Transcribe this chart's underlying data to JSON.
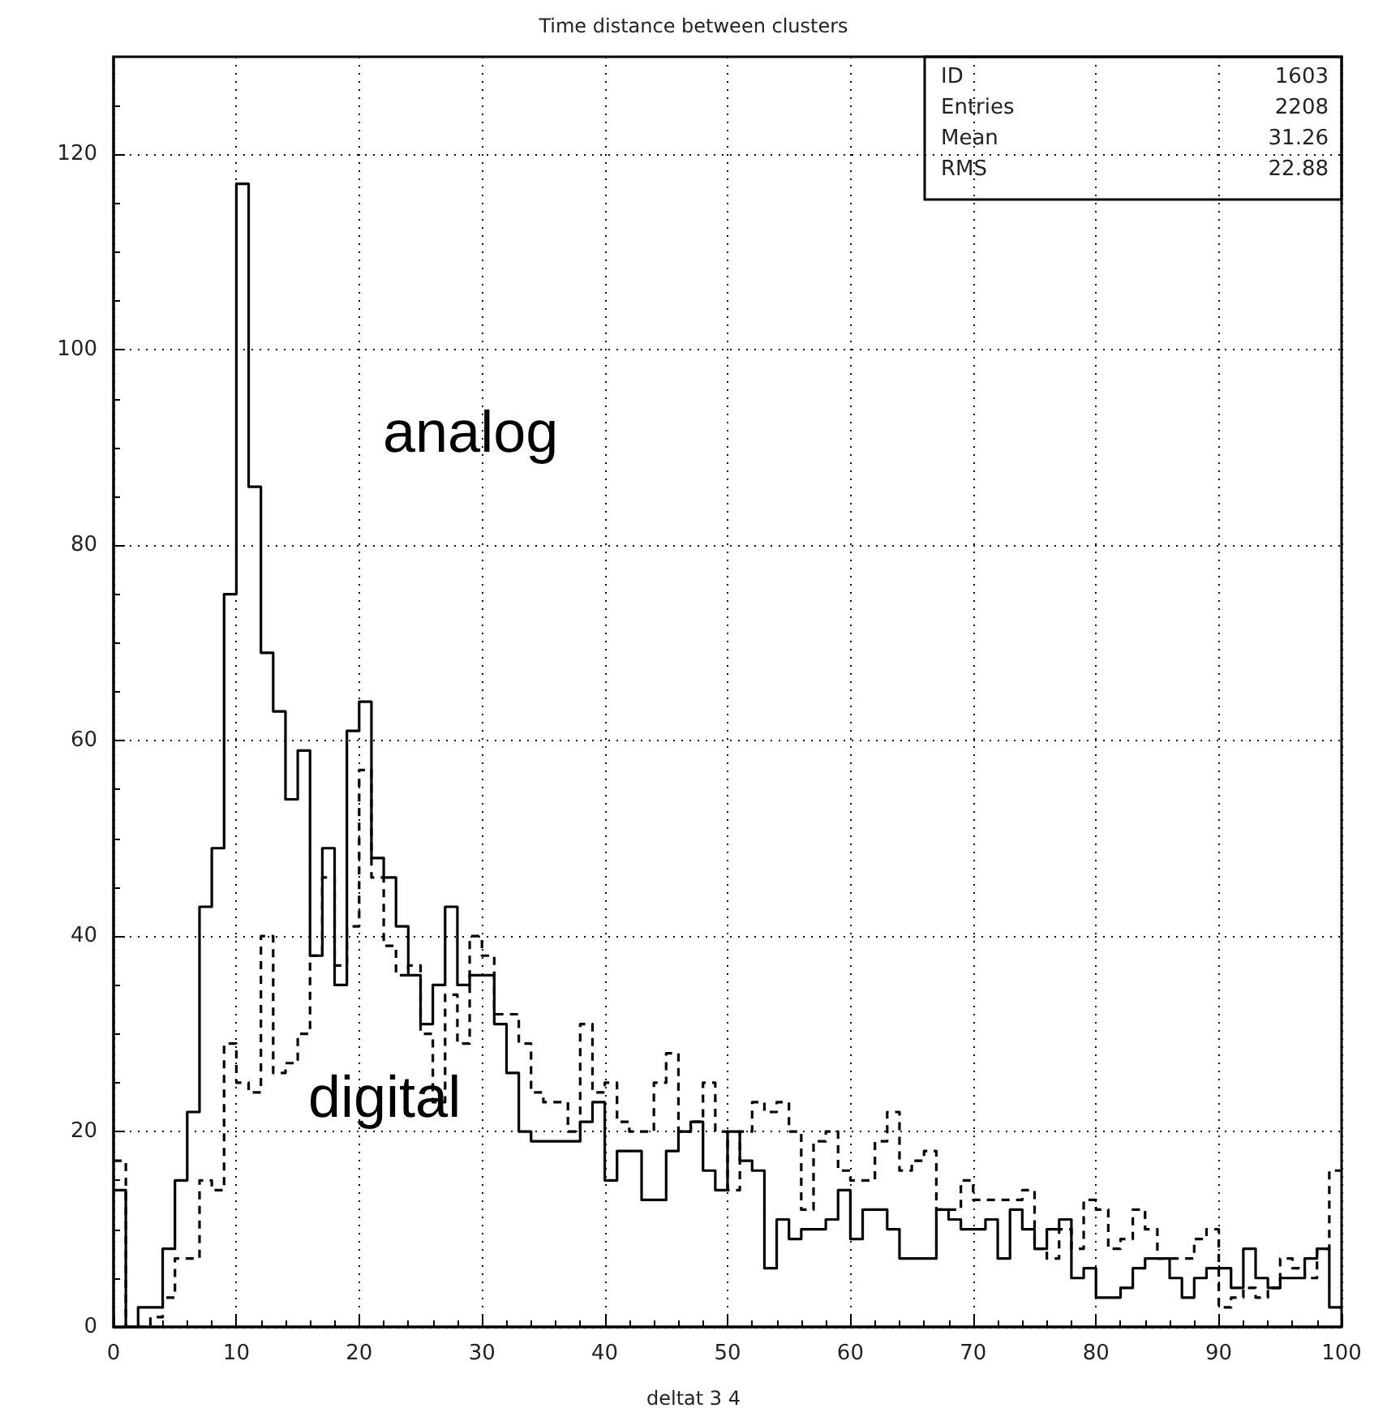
{
  "chart_data": {
    "type": "histogram",
    "title": "Time distance between clusters",
    "xlabel": "deltat 3 4",
    "bins": [
      0,
      1,
      2,
      3,
      4,
      5,
      6,
      7,
      8,
      9,
      10,
      11,
      12,
      13,
      14,
      15,
      16,
      17,
      18,
      19,
      20,
      21,
      22,
      23,
      24,
      25,
      26,
      27,
      28,
      29,
      30,
      31,
      32,
      33,
      34,
      35,
      36,
      37,
      38,
      39,
      40,
      41,
      42,
      43,
      44,
      45,
      46,
      47,
      48,
      49,
      50,
      51,
      52,
      53,
      54,
      55,
      56,
      57,
      58,
      59,
      60,
      61,
      62,
      63,
      64,
      65,
      66,
      67,
      68,
      69,
      70,
      71,
      72,
      73,
      74,
      75,
      76,
      77,
      78,
      79,
      80,
      81,
      82,
      83,
      84,
      85,
      86,
      87,
      88,
      89,
      90,
      91,
      92,
      93,
      94,
      95,
      96,
      97,
      98,
      99,
      100
    ],
    "series": [
      {
        "name": "analog",
        "color": "#000000",
        "line_style": "solid",
        "values": [
          14,
          0,
          2,
          2,
          8,
          15,
          22,
          43,
          49,
          75,
          117,
          86,
          69,
          63,
          54,
          59,
          38,
          49,
          35,
          61,
          64,
          48,
          46,
          41,
          36,
          31,
          35,
          43,
          35,
          36,
          36,
          31,
          26,
          20,
          19,
          19,
          19,
          19,
          21,
          23,
          15,
          18,
          18,
          13,
          13,
          18,
          20,
          21,
          16,
          14,
          20,
          17,
          16,
          6,
          11,
          9,
          10,
          10,
          11,
          14,
          9,
          12,
          12,
          10,
          7,
          7,
          7,
          12,
          11,
          10,
          10,
          11,
          7,
          12,
          10,
          8,
          10,
          11,
          5,
          6,
          3,
          3,
          4,
          6,
          7,
          7,
          5,
          3,
          5,
          6,
          6,
          4,
          8,
          5,
          4,
          5,
          5,
          7,
          8,
          2
        ]
      },
      {
        "name": "digital",
        "color": "#000000",
        "line_style": "dashed",
        "values": [
          17,
          0,
          0,
          1,
          3,
          7,
          7,
          15,
          14,
          29,
          25,
          24,
          40,
          26,
          27,
          30,
          38,
          46,
          37,
          41,
          57,
          46,
          39,
          36,
          37,
          30,
          23,
          34,
          29,
          40,
          38,
          32,
          32,
          29,
          24,
          23,
          23,
          20,
          31,
          24,
          25,
          21,
          20,
          20,
          25,
          28,
          20,
          21,
          25,
          20,
          14,
          20,
          23,
          22,
          23,
          20,
          12,
          19,
          20,
          16,
          15,
          15,
          19,
          22,
          16,
          17,
          18,
          12,
          12,
          15,
          13,
          13,
          13,
          13,
          14,
          8,
          7,
          10,
          8,
          13,
          12,
          8,
          9,
          12,
          10,
          7,
          7,
          7,
          9,
          10,
          2,
          3,
          4,
          3,
          4,
          7,
          6,
          5,
          8,
          16
        ]
      }
    ],
    "xlim": [
      0,
      100
    ],
    "xticks": [
      0,
      10,
      20,
      30,
      40,
      50,
      60,
      70,
      80,
      90,
      100
    ],
    "ylim": [
      0,
      130
    ],
    "yticks": [
      0,
      20,
      40,
      60,
      80,
      100,
      120
    ],
    "grid": true,
    "legend": false,
    "annotations": [
      "ID",
      "1603",
      "Entries",
      "2208",
      "Mean",
      "31.26",
      "RMS",
      "22.88"
    ]
  }
}
